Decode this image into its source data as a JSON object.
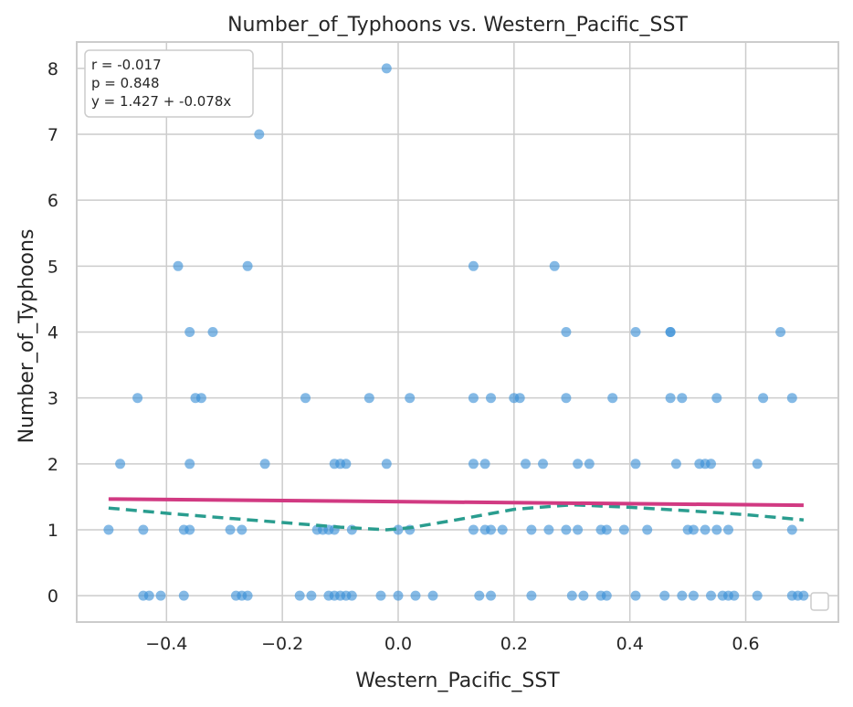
{
  "chart_data": {
    "type": "scatter",
    "title": "Number_of_Typhoons vs. Western_Pacific_SST",
    "xlabel": "Western_Pacific_SST",
    "ylabel": "Number_of_Typhoons",
    "xlim": [
      -0.555,
      0.76
    ],
    "ylim": [
      -0.4,
      8.4
    ],
    "xticks": [
      -0.4,
      -0.2,
      0.0,
      0.2,
      0.4,
      0.6
    ],
    "xtick_labels": [
      "−0.4",
      "−0.2",
      "0.0",
      "0.2",
      "0.4",
      "0.6"
    ],
    "yticks": [
      0,
      1,
      2,
      3,
      4,
      5,
      6,
      7,
      8
    ],
    "ytick_labels": [
      "0",
      "1",
      "2",
      "3",
      "4",
      "5",
      "6",
      "7",
      "8"
    ],
    "grid": true,
    "legend": "lower right (empty)",
    "stats_annotation": [
      "r = -0.017",
      "p = 0.848",
      "y = 1.427 + -0.078x"
    ],
    "colors": {
      "points": "#3a8fd6",
      "regression": "#d13a82",
      "smooth": "#2a9d8f",
      "grid": "#cccccc",
      "frame": "#cccccc"
    },
    "regression": {
      "intercept": 1.427,
      "slope": -0.078,
      "x_range": [
        -0.5,
        0.7
      ]
    },
    "smooth": {
      "x": [
        -0.5,
        -0.4,
        -0.3,
        -0.2,
        -0.1,
        -0.02,
        0.02,
        0.1,
        0.2,
        0.3,
        0.4,
        0.5,
        0.6,
        0.7
      ],
      "y": [
        1.33,
        1.25,
        1.18,
        1.11,
        1.04,
        1.0,
        1.03,
        1.15,
        1.31,
        1.38,
        1.34,
        1.29,
        1.23,
        1.15
      ]
    },
    "points": {
      "x": [
        -0.02,
        -0.24,
        -0.38,
        -0.26,
        0.13,
        0.27,
        -0.36,
        -0.32,
        0.29,
        0.41,
        0.47,
        0.47,
        0.66,
        -0.45,
        -0.35,
        -0.34,
        -0.16,
        -0.05,
        0.02,
        0.13,
        0.16,
        0.2,
        0.21,
        0.29,
        0.37,
        0.47,
        0.49,
        0.55,
        0.63,
        0.68,
        -0.48,
        -0.36,
        -0.23,
        -0.11,
        -0.1,
        -0.09,
        -0.02,
        0.13,
        0.15,
        0.22,
        0.25,
        0.31,
        0.33,
        0.41,
        0.48,
        0.52,
        0.53,
        0.54,
        0.62,
        -0.5,
        -0.44,
        -0.37,
        -0.36,
        -0.29,
        -0.27,
        -0.14,
        -0.13,
        -0.12,
        -0.11,
        -0.08,
        0.0,
        0.02,
        0.13,
        0.15,
        0.16,
        0.18,
        0.23,
        0.26,
        0.29,
        0.31,
        0.35,
        0.36,
        0.39,
        0.43,
        0.5,
        0.51,
        0.53,
        0.55,
        0.57,
        0.68,
        -0.44,
        -0.43,
        -0.41,
        -0.37,
        -0.28,
        -0.27,
        -0.26,
        -0.17,
        -0.15,
        -0.12,
        -0.11,
        -0.1,
        -0.09,
        -0.08,
        -0.03,
        0.0,
        0.03,
        0.06,
        0.14,
        0.16,
        0.23,
        0.3,
        0.32,
        0.35,
        0.36,
        0.41,
        0.46,
        0.49,
        0.51,
        0.54,
        0.56,
        0.57,
        0.58,
        0.62,
        0.68,
        0.69,
        0.7
      ],
      "y": [
        8,
        7,
        5,
        5,
        5,
        5,
        4,
        4,
        4,
        4,
        4,
        4,
        4,
        3,
        3,
        3,
        3,
        3,
        3,
        3,
        3,
        3,
        3,
        3,
        3,
        3,
        3,
        3,
        3,
        3,
        2,
        2,
        2,
        2,
        2,
        2,
        2,
        2,
        2,
        2,
        2,
        2,
        2,
        2,
        2,
        2,
        2,
        2,
        2,
        1,
        1,
        1,
        1,
        1,
        1,
        1,
        1,
        1,
        1,
        1,
        1,
        1,
        1,
        1,
        1,
        1,
        1,
        1,
        1,
        1,
        1,
        1,
        1,
        1,
        1,
        1,
        1,
        1,
        1,
        1,
        0,
        0,
        0,
        0,
        0,
        0,
        0,
        0,
        0,
        0,
        0,
        0,
        0,
        0,
        0,
        0,
        0,
        0,
        0,
        0,
        0,
        0,
        0,
        0,
        0,
        0,
        0,
        0,
        0,
        0,
        0,
        0,
        0,
        0,
        0,
        0,
        0
      ]
    }
  }
}
